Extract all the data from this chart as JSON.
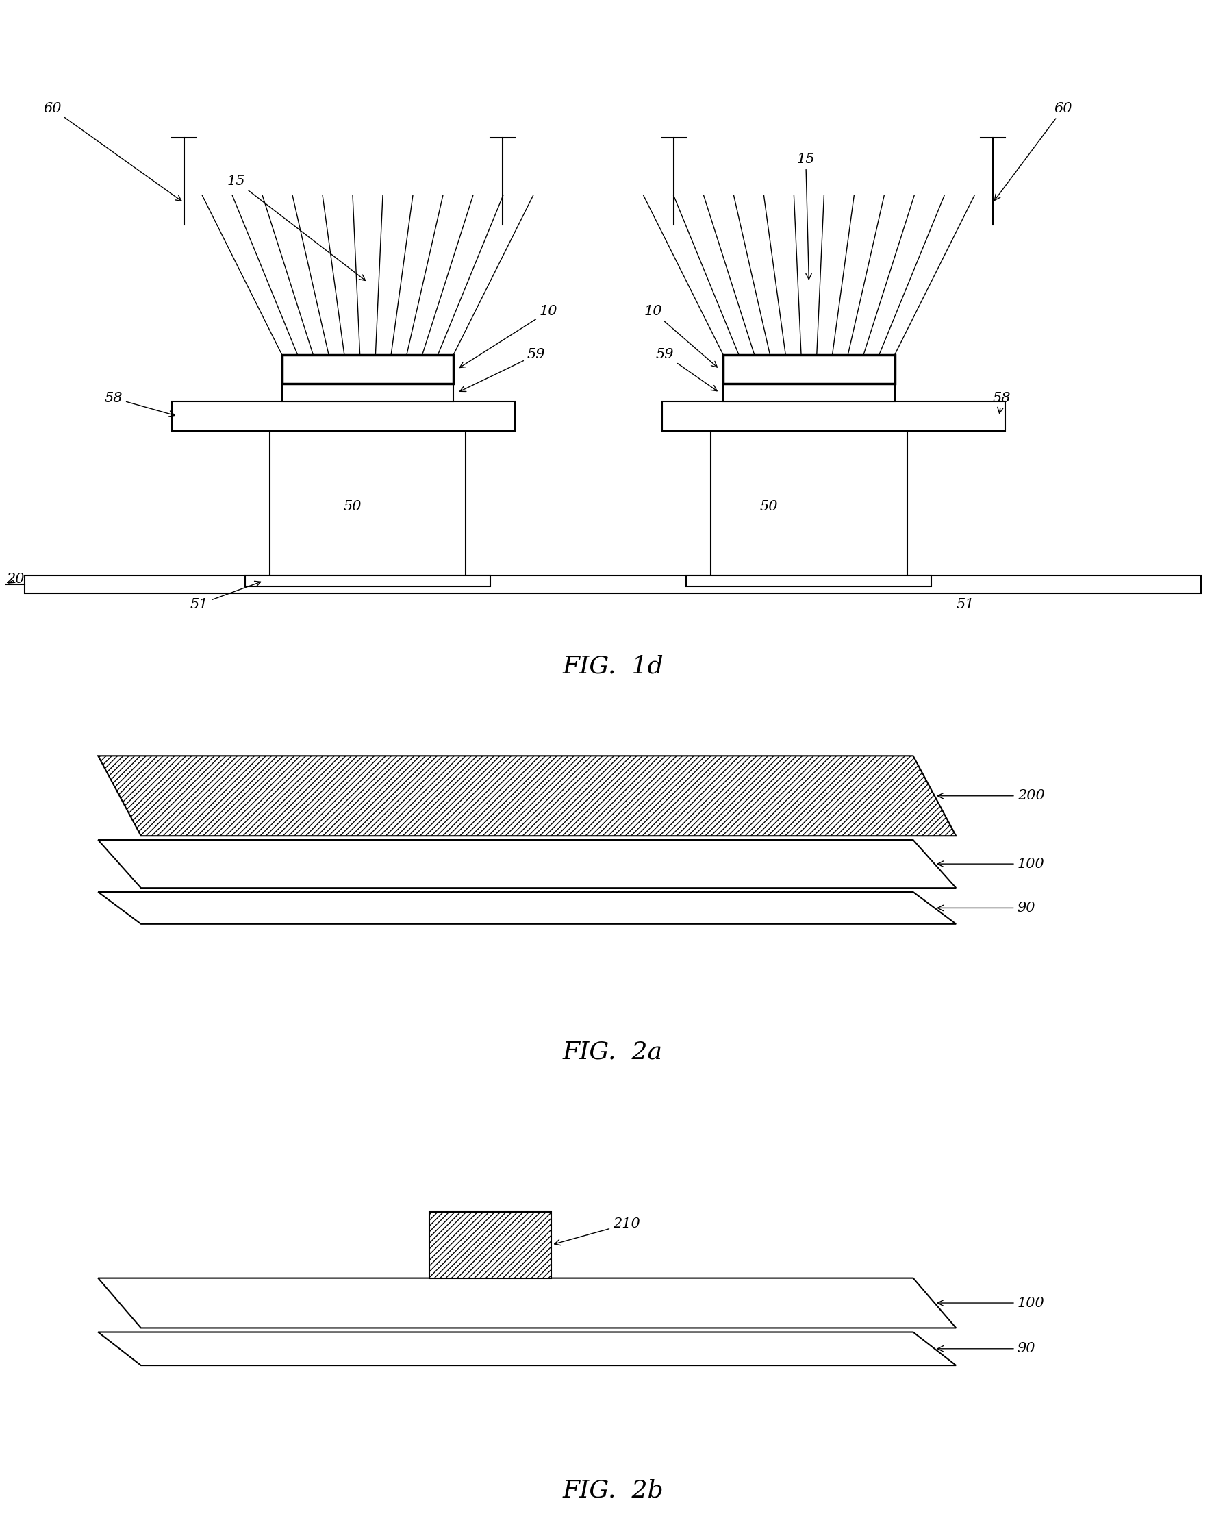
{
  "fig_width": 17.9,
  "fig_height": 22.48,
  "bg_color": "#ffffff",
  "line_color": "#000000",
  "lw_main": 1.5,
  "lw_thick": 2.5,
  "lw_thin": 1.0,
  "font_label": 15,
  "font_title": 26,
  "fig1d_title": "FIG.  1d",
  "fig2a_title": "FIG.  2a",
  "fig2b_title": "FIG.  2b"
}
